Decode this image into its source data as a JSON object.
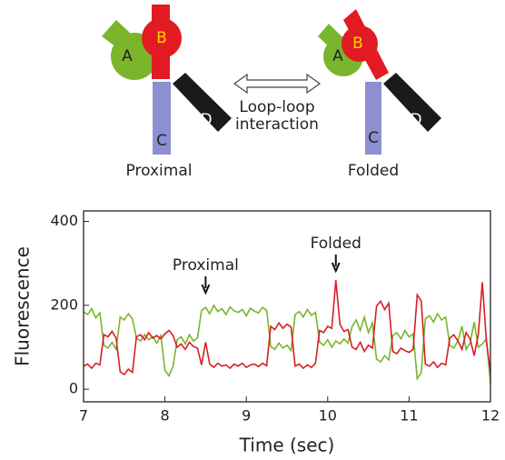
{
  "diagram": {
    "left": {
      "parts": [
        "A",
        "B",
        "C",
        "D"
      ],
      "label": "Proximal"
    },
    "right": {
      "parts": [
        "A",
        "B",
        "C",
        "D"
      ],
      "label": "Folded"
    },
    "arrow_label": [
      "Loop-loop",
      "interaction"
    ]
  },
  "chart_data": {
    "type": "line",
    "xlabel": "Time (sec)",
    "ylabel": "Fluorescence",
    "xlim": [
      7,
      12
    ],
    "ylim": [
      -30,
      425
    ],
    "xticks": [
      7,
      8,
      9,
      10,
      11,
      12
    ],
    "yticks": [
      0,
      200,
      400
    ],
    "annotations": [
      {
        "text": "Proximal",
        "x": 8.5
      },
      {
        "text": "Folded",
        "x": 10.1
      }
    ],
    "x": [
      7.0,
      7.05,
      7.1,
      7.15,
      7.2,
      7.25,
      7.3,
      7.35,
      7.4,
      7.45,
      7.5,
      7.55,
      7.6,
      7.65,
      7.7,
      7.75,
      7.8,
      7.85,
      7.9,
      7.95,
      8.0,
      8.05,
      8.1,
      8.15,
      8.2,
      8.25,
      8.3,
      8.35,
      8.4,
      8.45,
      8.5,
      8.55,
      8.6,
      8.65,
      8.7,
      8.75,
      8.8,
      8.85,
      8.9,
      8.95,
      9.0,
      9.05,
      9.1,
      9.15,
      9.2,
      9.25,
      9.3,
      9.35,
      9.4,
      9.45,
      9.5,
      9.55,
      9.6,
      9.65,
      9.7,
      9.75,
      9.8,
      9.85,
      9.9,
      9.95,
      10.0,
      10.05,
      10.1,
      10.15,
      10.2,
      10.25,
      10.3,
      10.35,
      10.4,
      10.45,
      10.5,
      10.55,
      10.6,
      10.65,
      10.7,
      10.75,
      10.8,
      10.85,
      10.9,
      10.95,
      11.0,
      11.05,
      11.1,
      11.15,
      11.2,
      11.25,
      11.3,
      11.35,
      11.4,
      11.45,
      11.5,
      11.55,
      11.6,
      11.65,
      11.7,
      11.75,
      11.8,
      11.85,
      11.9,
      11.95,
      12.0
    ],
    "series": [
      {
        "color": "#7ab52c",
        "values": [
          185,
          178,
          192,
          170,
          182,
          105,
          98,
          112,
          95,
          172,
          165,
          180,
          168,
          122,
          115,
          130,
          118,
          125,
          110,
          128,
          45,
          32,
          55,
          118,
          125,
          108,
          130,
          115,
          122,
          188,
          195,
          180,
          200,
          185,
          192,
          178,
          196,
          187,
          183,
          190,
          175,
          193,
          186,
          182,
          195,
          188,
          102,
          95,
          110,
          98,
          105,
          92,
          178,
          185,
          172,
          190,
          176,
          183,
          112,
          105,
          118,
          100,
          115,
          108,
          120,
          110,
          150,
          165,
          140,
          172,
          135,
          158,
          72,
          65,
          80,
          70,
          128,
          135,
          120,
          140,
          125,
          132,
          25,
          40,
          168,
          175,
          160,
          180,
          165,
          172,
          105,
          98,
          115,
          150,
          95,
          110,
          160,
          100,
          108,
          120,
          15
        ]
      },
      {
        "color": "#d81f26",
        "values": [
          55,
          60,
          50,
          62,
          58,
          130,
          125,
          138,
          122,
          42,
          35,
          48,
          40,
          125,
          130,
          118,
          135,
          122,
          128,
          120,
          132,
          140,
          128,
          100,
          108,
          95,
          112,
          102,
          98,
          58,
          112,
          60,
          52,
          62,
          55,
          58,
          50,
          60,
          55,
          62,
          52,
          58,
          60,
          54,
          62,
          56,
          150,
          142,
          158,
          145,
          155,
          148,
          55,
          60,
          50,
          58,
          52,
          62,
          140,
          135,
          150,
          145,
          260,
          155,
          138,
          142,
          100,
          95,
          112,
          90,
          105,
          98,
          198,
          210,
          190,
          205,
          90,
          85,
          98,
          92,
          88,
          95,
          225,
          210,
          60,
          55,
          65,
          52,
          62,
          58,
          122,
          130,
          115,
          95,
          135,
          120,
          80,
          130,
          255,
          115,
          40
        ]
      }
    ]
  }
}
